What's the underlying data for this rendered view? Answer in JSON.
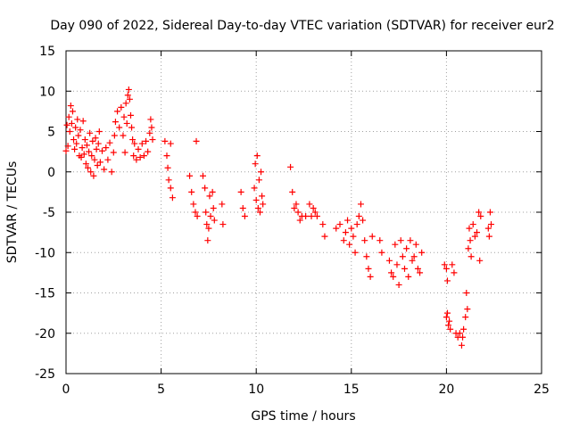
{
  "chart_data": {
    "type": "scatter",
    "title": "Day 090 of 2022, Sidereal Day-to-day VTEC variation (SDTVAR) for receiver eur2",
    "xlabel": "GPS time / hours",
    "ylabel": "SDTVAR / TECUs",
    "xlim": [
      0,
      25
    ],
    "ylim": [
      -25,
      15
    ],
    "xticks": [
      0,
      5,
      10,
      15,
      20,
      25
    ],
    "yticks": [
      15,
      10,
      5,
      0,
      -5,
      -10,
      -15,
      -20,
      -25
    ],
    "xtick_labels": [
      "0",
      "5",
      "10",
      "15",
      "20",
      "25"
    ],
    "ytick_labels": [
      "15",
      "10",
      "5",
      "0",
      "-5",
      "-10",
      "-15",
      "-20",
      "-25"
    ],
    "grid": true,
    "marker": "+",
    "series_color": "#ff0000",
    "series": [
      {
        "name": "SDTVAR",
        "points": [
          [
            0.0,
            2.6
          ],
          [
            0.05,
            5.8
          ],
          [
            0.1,
            3.2
          ],
          [
            0.15,
            6.8
          ],
          [
            0.2,
            5.0
          ],
          [
            0.25,
            8.2
          ],
          [
            0.3,
            6.0
          ],
          [
            0.35,
            7.5
          ],
          [
            0.4,
            4.0
          ],
          [
            0.45,
            2.8
          ],
          [
            0.5,
            5.5
          ],
          [
            0.55,
            3.5
          ],
          [
            0.6,
            6.5
          ],
          [
            0.65,
            4.5
          ],
          [
            0.7,
            2.0
          ],
          [
            0.75,
            5.2
          ],
          [
            0.8,
            1.8
          ],
          [
            0.85,
            3.0
          ],
          [
            0.9,
            6.3
          ],
          [
            0.95,
            2.2
          ],
          [
            1.0,
            4.0
          ],
          [
            1.05,
            1.0
          ],
          [
            1.1,
            3.3
          ],
          [
            1.15,
            0.5
          ],
          [
            1.2,
            2.5
          ],
          [
            1.25,
            4.8
          ],
          [
            1.3,
            0.0
          ],
          [
            1.35,
            2.0
          ],
          [
            1.4,
            3.8
          ],
          [
            1.45,
            -0.5
          ],
          [
            1.5,
            1.5
          ],
          [
            1.55,
            4.2
          ],
          [
            1.6,
            2.8
          ],
          [
            1.65,
            0.8
          ],
          [
            1.7,
            3.5
          ],
          [
            1.75,
            5.0
          ],
          [
            1.8,
            1.2
          ],
          [
            1.9,
            2.6
          ],
          [
            2.0,
            0.3
          ],
          [
            2.1,
            3.0
          ],
          [
            2.2,
            1.5
          ],
          [
            2.3,
            3.6
          ],
          [
            2.4,
            0.0
          ],
          [
            2.5,
            2.4
          ],
          [
            2.55,
            4.5
          ],
          [
            2.6,
            6.2
          ],
          [
            2.7,
            7.5
          ],
          [
            2.8,
            5.5
          ],
          [
            2.9,
            8.0
          ],
          [
            3.0,
            4.5
          ],
          [
            3.05,
            6.8
          ],
          [
            3.1,
            2.4
          ],
          [
            3.15,
            8.5
          ],
          [
            3.2,
            6.0
          ],
          [
            3.25,
            9.5
          ],
          [
            3.3,
            10.2
          ],
          [
            3.35,
            9.0
          ],
          [
            3.4,
            7.0
          ],
          [
            3.45,
            5.5
          ],
          [
            3.5,
            4.0
          ],
          [
            3.55,
            2.0
          ],
          [
            3.6,
            3.5
          ],
          [
            3.7,
            1.5
          ],
          [
            3.8,
            2.8
          ],
          [
            3.9,
            1.8
          ],
          [
            4.0,
            3.5
          ],
          [
            4.1,
            2.0
          ],
          [
            4.2,
            3.8
          ],
          [
            4.3,
            2.5
          ],
          [
            4.4,
            4.8
          ],
          [
            4.45,
            6.5
          ],
          [
            4.5,
            5.5
          ],
          [
            4.55,
            4.0
          ],
          [
            5.2,
            3.8
          ],
          [
            5.3,
            2.0
          ],
          [
            5.35,
            0.5
          ],
          [
            5.4,
            -1.0
          ],
          [
            5.5,
            3.5
          ],
          [
            5.5,
            -2.0
          ],
          [
            5.6,
            -3.2
          ],
          [
            6.5,
            -0.5
          ],
          [
            6.6,
            -2.5
          ],
          [
            6.7,
            -4.0
          ],
          [
            6.8,
            -5.0
          ],
          [
            6.85,
            3.8
          ],
          [
            6.9,
            -5.5
          ],
          [
            7.2,
            -0.5
          ],
          [
            7.3,
            -2.0
          ],
          [
            7.35,
            -5.0
          ],
          [
            7.4,
            -6.5
          ],
          [
            7.45,
            -8.5
          ],
          [
            7.5,
            -7.0
          ],
          [
            7.55,
            -3.0
          ],
          [
            7.6,
            -5.5
          ],
          [
            7.7,
            -2.5
          ],
          [
            7.75,
            -4.5
          ],
          [
            7.8,
            -6.0
          ],
          [
            8.2,
            -4.0
          ],
          [
            8.25,
            -6.5
          ],
          [
            9.2,
            -2.5
          ],
          [
            9.3,
            -4.5
          ],
          [
            9.4,
            -5.5
          ],
          [
            9.9,
            -2.0
          ],
          [
            9.95,
            1.0
          ],
          [
            10.0,
            -3.5
          ],
          [
            10.05,
            2.0
          ],
          [
            10.1,
            -4.5
          ],
          [
            10.15,
            -1.0
          ],
          [
            10.2,
            -5.0
          ],
          [
            10.25,
            0.0
          ],
          [
            10.3,
            -3.0
          ],
          [
            10.35,
            -4.0
          ],
          [
            11.8,
            0.6
          ],
          [
            11.9,
            -2.5
          ],
          [
            12.0,
            -4.5
          ],
          [
            12.1,
            -4.0
          ],
          [
            12.2,
            -5.0
          ],
          [
            12.3,
            -6.0
          ],
          [
            12.4,
            -5.5
          ],
          [
            12.6,
            -5.5
          ],
          [
            12.8,
            -4.0
          ],
          [
            12.9,
            -5.5
          ],
          [
            13.0,
            -4.5
          ],
          [
            13.1,
            -5.0
          ],
          [
            13.2,
            -5.5
          ],
          [
            13.5,
            -6.5
          ],
          [
            13.6,
            -8.0
          ],
          [
            14.2,
            -7.0
          ],
          [
            14.4,
            -6.5
          ],
          [
            14.6,
            -8.5
          ],
          [
            14.7,
            -7.5
          ],
          [
            14.8,
            -6.0
          ],
          [
            14.9,
            -9.0
          ],
          [
            15.0,
            -7.0
          ],
          [
            15.1,
            -8.0
          ],
          [
            15.2,
            -10.0
          ],
          [
            15.3,
            -6.5
          ],
          [
            15.4,
            -5.5
          ],
          [
            15.5,
            -4.0
          ],
          [
            15.6,
            -6.0
          ],
          [
            15.7,
            -8.5
          ],
          [
            15.8,
            -10.5
          ],
          [
            15.9,
            -12.0
          ],
          [
            16.0,
            -13.0
          ],
          [
            16.1,
            -8.0
          ],
          [
            16.5,
            -8.5
          ],
          [
            16.6,
            -10.0
          ],
          [
            17.0,
            -11.0
          ],
          [
            17.1,
            -12.5
          ],
          [
            17.2,
            -13.0
          ],
          [
            17.3,
            -9.0
          ],
          [
            17.4,
            -11.5
          ],
          [
            17.5,
            -14.0
          ],
          [
            17.6,
            -8.5
          ],
          [
            17.7,
            -10.5
          ],
          [
            17.8,
            -12.0
          ],
          [
            17.9,
            -9.5
          ],
          [
            18.0,
            -13.0
          ],
          [
            18.1,
            -8.5
          ],
          [
            18.2,
            -11.0
          ],
          [
            18.3,
            -10.5
          ],
          [
            18.4,
            -9.0
          ],
          [
            18.5,
            -12.0
          ],
          [
            18.6,
            -12.5
          ],
          [
            18.7,
            -10.0
          ],
          [
            19.9,
            -11.5
          ],
          [
            20.0,
            -12.0
          ],
          [
            20.05,
            -13.5
          ],
          [
            20.0,
            -18.0
          ],
          [
            20.05,
            -17.5
          ],
          [
            20.1,
            -19.0
          ],
          [
            20.15,
            -18.5
          ],
          [
            20.2,
            -19.5
          ],
          [
            20.3,
            -11.5
          ],
          [
            20.4,
            -12.5
          ],
          [
            20.5,
            -20.0
          ],
          [
            20.6,
            -20.5
          ],
          [
            20.7,
            -20.0
          ],
          [
            20.8,
            -21.5
          ],
          [
            20.85,
            -20.5
          ],
          [
            20.9,
            -19.5
          ],
          [
            21.0,
            -18.0
          ],
          [
            21.05,
            -15.0
          ],
          [
            21.1,
            -17.0
          ],
          [
            21.15,
            -9.5
          ],
          [
            21.2,
            -7.0
          ],
          [
            21.25,
            -8.5
          ],
          [
            21.3,
            -10.5
          ],
          [
            21.4,
            -6.5
          ],
          [
            21.5,
            -8.0
          ],
          [
            21.6,
            -7.5
          ],
          [
            21.7,
            -5.0
          ],
          [
            21.75,
            -11.0
          ],
          [
            21.8,
            -5.5
          ],
          [
            22.2,
            -7.0
          ],
          [
            22.25,
            -8.0
          ],
          [
            22.3,
            -5.0
          ],
          [
            22.35,
            -6.5
          ]
        ]
      }
    ]
  }
}
